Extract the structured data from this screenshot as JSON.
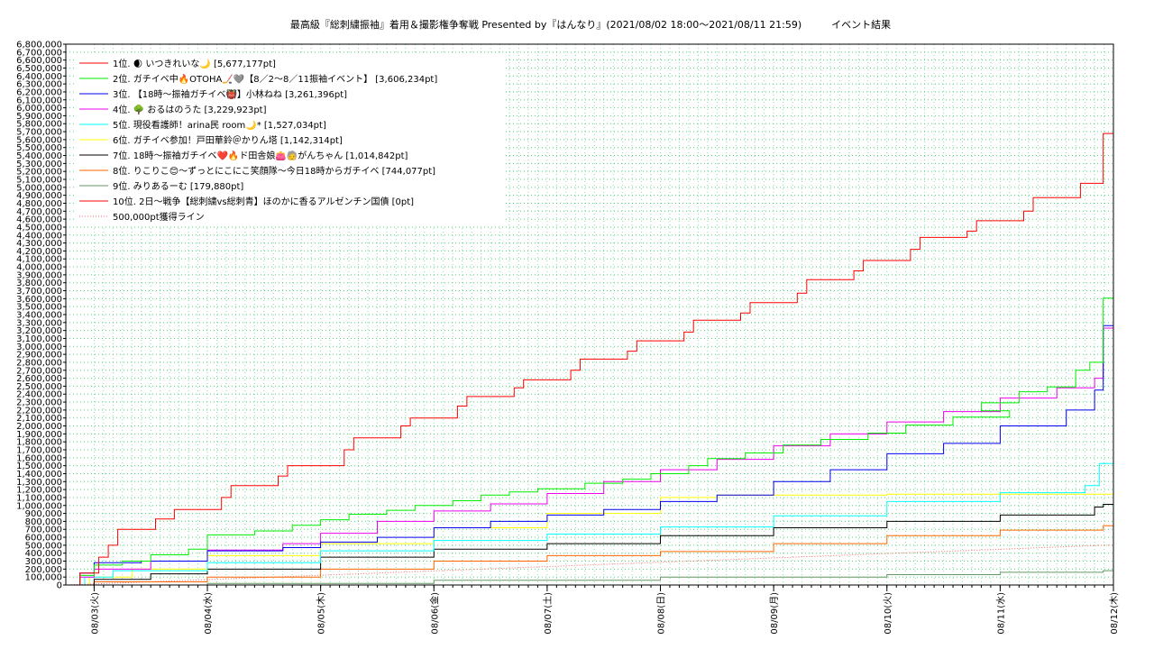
{
  "title": "最高級『総刺繍振袖』着用＆撮影権争奪戦 Presented by『はんなり』(2021/08/02 18:00〜2021/08/11 21:59)　　　イベント結果",
  "chart_data": {
    "type": "line",
    "title": "最高級『総刺繍振袖』着用＆撮影権争奪戦 Presented by『はんなり』(2021/08/02 18:00〜2021/08/11 21:59)　　　イベント結果",
    "xlabel": "",
    "ylabel": "",
    "x_range": [
      "2021-08-02T18:00",
      "2021-08-12T00:00"
    ],
    "ylim": [
      0,
      6800000
    ],
    "y_tick_step": 100000,
    "grid": true,
    "legend_position": "top-left",
    "x_ticks": [
      "08/03(火)",
      "08/04(水)",
      "08/05(木)",
      "08/06(金)",
      "08/07(土)",
      "08/08(日)",
      "08/09(月)",
      "08/10(火)",
      "08/11(水)",
      "08/12(木)"
    ],
    "x_tick_dates": [
      "2021-08-03T00:00",
      "2021-08-04T00:00",
      "2021-08-05T00:00",
      "2021-08-06T00:00",
      "2021-08-07T00:00",
      "2021-08-08T00:00",
      "2021-08-09T00:00",
      "2021-08-10T00:00",
      "2021-08-11T00:00",
      "2021-08-12T00:00"
    ],
    "series": [
      {
        "name": "1位. 🌒 いつきれいな🌙 [5,677,177pt]",
        "color": "#ff0000",
        "dash": false,
        "step": true,
        "points": [
          [
            "2021-08-02T18:00",
            0
          ],
          [
            "2021-08-02T21:00",
            150000
          ],
          [
            "2021-08-03T01:00",
            350000
          ],
          [
            "2021-08-03T03:00",
            500000
          ],
          [
            "2021-08-03T05:00",
            700000
          ],
          [
            "2021-08-03T13:00",
            830000
          ],
          [
            "2021-08-03T17:00",
            950000
          ],
          [
            "2021-08-04T03:00",
            1100000
          ],
          [
            "2021-08-04T05:00",
            1250000
          ],
          [
            "2021-08-04T15:00",
            1370000
          ],
          [
            "2021-08-04T17:00",
            1500000
          ],
          [
            "2021-08-05T05:00",
            1700000
          ],
          [
            "2021-08-05T07:00",
            1850000
          ],
          [
            "2021-08-05T17:00",
            2000000
          ],
          [
            "2021-08-05T19:00",
            2100000
          ],
          [
            "2021-08-06T05:00",
            2250000
          ],
          [
            "2021-08-06T07:00",
            2370000
          ],
          [
            "2021-08-06T17:00",
            2480000
          ],
          [
            "2021-08-06T19:00",
            2580000
          ],
          [
            "2021-08-07T05:00",
            2700000
          ],
          [
            "2021-08-07T07:00",
            2840000
          ],
          [
            "2021-08-07T17:00",
            2940000
          ],
          [
            "2021-08-07T19:00",
            3070000
          ],
          [
            "2021-08-08T05:00",
            3180000
          ],
          [
            "2021-08-08T07:00",
            3330000
          ],
          [
            "2021-08-08T17:00",
            3420000
          ],
          [
            "2021-08-08T19:00",
            3550000
          ],
          [
            "2021-08-09T05:00",
            3670000
          ],
          [
            "2021-08-09T07:00",
            3840000
          ],
          [
            "2021-08-09T17:00",
            3950000
          ],
          [
            "2021-08-09T19:00",
            4080000
          ],
          [
            "2021-08-10T05:00",
            4220000
          ],
          [
            "2021-08-10T07:00",
            4370000
          ],
          [
            "2021-08-10T17:00",
            4450000
          ],
          [
            "2021-08-10T19:00",
            4580000
          ],
          [
            "2021-08-11T05:00",
            4700000
          ],
          [
            "2021-08-11T07:00",
            4870000
          ],
          [
            "2021-08-11T17:00",
            5050000
          ],
          [
            "2021-08-11T21:50",
            5677177
          ],
          [
            "2021-08-12T00:00",
            5677177
          ]
        ]
      },
      {
        "name": "2位. ガチイベ中🔥OTOHA🏒🩶【8／2〜8／11振袖イベント】 [3,606,234pt]",
        "color": "#00ee00",
        "dash": false,
        "step": true,
        "points": [
          [
            "2021-08-02T18:00",
            0
          ],
          [
            "2021-08-02T21:00",
            120000
          ],
          [
            "2021-08-03T00:00",
            250000
          ],
          [
            "2021-08-03T06:00",
            300000
          ],
          [
            "2021-08-03T12:00",
            380000
          ],
          [
            "2021-08-03T20:00",
            450000
          ],
          [
            "2021-08-04T00:00",
            630000
          ],
          [
            "2021-08-04T10:00",
            680000
          ],
          [
            "2021-08-04T18:00",
            750000
          ],
          [
            "2021-08-05T00:00",
            820000
          ],
          [
            "2021-08-05T06:00",
            890000
          ],
          [
            "2021-08-05T14:00",
            940000
          ],
          [
            "2021-08-05T20:00",
            1000000
          ],
          [
            "2021-08-06T04:00",
            1060000
          ],
          [
            "2021-08-06T10:00",
            1130000
          ],
          [
            "2021-08-06T16:00",
            1170000
          ],
          [
            "2021-08-06T22:00",
            1210000
          ],
          [
            "2021-08-07T08:00",
            1280000
          ],
          [
            "2021-08-07T16:00",
            1330000
          ],
          [
            "2021-08-07T22:00",
            1400000
          ],
          [
            "2021-08-08T06:00",
            1500000
          ],
          [
            "2021-08-08T10:00",
            1590000
          ],
          [
            "2021-08-08T18:00",
            1660000
          ],
          [
            "2021-08-09T02:00",
            1760000
          ],
          [
            "2021-08-09T10:00",
            1830000
          ],
          [
            "2021-08-09T20:00",
            1910000
          ],
          [
            "2021-08-10T04:00",
            2010000
          ],
          [
            "2021-08-10T14:00",
            2110000
          ],
          [
            "2021-08-11T02:00",
            2190000
          ],
          [
            "2021-08-10T20:00",
            2290000
          ],
          [
            "2021-08-11T04:00",
            2430000
          ],
          [
            "2021-08-11T10:00",
            2490000
          ],
          [
            "2021-08-11T16:00",
            2700000
          ],
          [
            "2021-08-11T19:00",
            2800000
          ],
          [
            "2021-08-11T21:50",
            3606234
          ],
          [
            "2021-08-12T00:00",
            3606234
          ]
        ]
      },
      {
        "name": "3位. 【18時〜振袖ガチイベ👹】小林ねね [3,261,396pt]",
        "color": "#0000ee",
        "dash": false,
        "step": true,
        "points": [
          [
            "2021-08-02T18:00",
            0
          ],
          [
            "2021-08-02T21:00",
            150000
          ],
          [
            "2021-08-03T00:00",
            280000
          ],
          [
            "2021-08-03T10:00",
            300000
          ],
          [
            "2021-08-04T00:00",
            430000
          ],
          [
            "2021-08-04T16:00",
            470000
          ],
          [
            "2021-08-05T00:00",
            540000
          ],
          [
            "2021-08-05T12:00",
            600000
          ],
          [
            "2021-08-06T00:00",
            720000
          ],
          [
            "2021-08-06T12:00",
            800000
          ],
          [
            "2021-08-07T00:00",
            880000
          ],
          [
            "2021-08-07T12:00",
            950000
          ],
          [
            "2021-08-08T00:00",
            1050000
          ],
          [
            "2021-08-08T12:00",
            1130000
          ],
          [
            "2021-08-09T00:00",
            1300000
          ],
          [
            "2021-08-09T12:00",
            1450000
          ],
          [
            "2021-08-10T00:00",
            1650000
          ],
          [
            "2021-08-10T12:00",
            1780000
          ],
          [
            "2021-08-11T00:00",
            2000000
          ],
          [
            "2021-08-11T14:00",
            2200000
          ],
          [
            "2021-08-11T20:00",
            2450000
          ],
          [
            "2021-08-11T21:50",
            3261396
          ],
          [
            "2021-08-12T00:00",
            3261396
          ]
        ]
      },
      {
        "name": "4位. 🌳 おるはのうた [3,229,923pt]",
        "color": "#ee00ee",
        "dash": false,
        "step": true,
        "points": [
          [
            "2021-08-02T18:00",
            0
          ],
          [
            "2021-08-02T21:00",
            100000
          ],
          [
            "2021-08-03T00:00",
            200000
          ],
          [
            "2021-08-03T12:00",
            300000
          ],
          [
            "2021-08-04T00:00",
            440000
          ],
          [
            "2021-08-04T16:00",
            520000
          ],
          [
            "2021-08-05T00:00",
            650000
          ],
          [
            "2021-08-05T12:00",
            800000
          ],
          [
            "2021-08-06T00:00",
            930000
          ],
          [
            "2021-08-06T12:00",
            1020000
          ],
          [
            "2021-08-07T00:00",
            1150000
          ],
          [
            "2021-08-07T12:00",
            1300000
          ],
          [
            "2021-08-08T00:00",
            1450000
          ],
          [
            "2021-08-08T12:00",
            1580000
          ],
          [
            "2021-08-09T00:00",
            1750000
          ],
          [
            "2021-08-09T12:00",
            1900000
          ],
          [
            "2021-08-10T00:00",
            2050000
          ],
          [
            "2021-08-10T12:00",
            2180000
          ],
          [
            "2021-08-11T00:00",
            2350000
          ],
          [
            "2021-08-11T12:00",
            2480000
          ],
          [
            "2021-08-11T20:00",
            2600000
          ],
          [
            "2021-08-11T21:50",
            3229923
          ],
          [
            "2021-08-12T00:00",
            3229923
          ]
        ]
      },
      {
        "name": "5位. 現役看護師！arina民 room🌙* [1,527,034pt]",
        "color": "#00ffff",
        "dash": false,
        "step": true,
        "points": [
          [
            "2021-08-02T18:00",
            0
          ],
          [
            "2021-08-02T22:00",
            100000
          ],
          [
            "2021-08-03T04:00",
            180000
          ],
          [
            "2021-08-04T00:00",
            280000
          ],
          [
            "2021-08-05T00:00",
            430000
          ],
          [
            "2021-08-06T00:00",
            560000
          ],
          [
            "2021-08-07T00:00",
            640000
          ],
          [
            "2021-08-08T00:00",
            730000
          ],
          [
            "2021-08-09T00:00",
            870000
          ],
          [
            "2021-08-10T00:00",
            1050000
          ],
          [
            "2021-08-11T00:00",
            1160000
          ],
          [
            "2021-08-11T18:00",
            1250000
          ],
          [
            "2021-08-11T21:00",
            1527034
          ],
          [
            "2021-08-12T00:00",
            1527034
          ]
        ]
      },
      {
        "name": "6位. ガチイベ参加！戸田華鈴＠かりん塔 [1,142,314pt]",
        "color": "#ffff00",
        "dash": false,
        "step": true,
        "points": [
          [
            "2021-08-02T18:00",
            0
          ],
          [
            "2021-08-02T23:00",
            100000
          ],
          [
            "2021-08-03T08:00",
            200000
          ],
          [
            "2021-08-04T00:00",
            370000
          ],
          [
            "2021-08-05T00:00",
            520000
          ],
          [
            "2021-08-06T00:00",
            720000
          ],
          [
            "2021-08-07T00:00",
            900000
          ],
          [
            "2021-08-08T00:00",
            1100000
          ],
          [
            "2021-08-08T12:00",
            1130000
          ],
          [
            "2021-08-10T00:00",
            1142314
          ],
          [
            "2021-08-12T00:00",
            1142314
          ]
        ]
      },
      {
        "name": "7位. 18時〜振袖ガチイベ❤️🔥ド田舎娘👛🧓がんちゃん [1,014,842pt]",
        "color": "#000000",
        "dash": false,
        "step": true,
        "points": [
          [
            "2021-08-02T18:00",
            0
          ],
          [
            "2021-08-03T00:00",
            70000
          ],
          [
            "2021-08-03T12:00",
            140000
          ],
          [
            "2021-08-04T00:00",
            200000
          ],
          [
            "2021-08-05T00:00",
            350000
          ],
          [
            "2021-08-06T00:00",
            450000
          ],
          [
            "2021-08-07T00:00",
            520000
          ],
          [
            "2021-08-08T00:00",
            620000
          ],
          [
            "2021-08-09T00:00",
            720000
          ],
          [
            "2021-08-10T00:00",
            800000
          ],
          [
            "2021-08-11T00:00",
            880000
          ],
          [
            "2021-08-11T20:00",
            980000
          ],
          [
            "2021-08-11T21:50",
            1014842
          ],
          [
            "2021-08-12T00:00",
            1014842
          ]
        ]
      },
      {
        "name": "8位. りこりこ😊〜ずっとにこにこ笑顔隊〜今日18時からガチイベ [744,077pt]",
        "color": "#ff6600",
        "dash": false,
        "step": true,
        "points": [
          [
            "2021-08-02T18:00",
            0
          ],
          [
            "2021-08-03T00:00",
            40000
          ],
          [
            "2021-08-04T00:00",
            100000
          ],
          [
            "2021-08-05T00:00",
            200000
          ],
          [
            "2021-08-06T00:00",
            300000
          ],
          [
            "2021-08-07T00:00",
            370000
          ],
          [
            "2021-08-08T00:00",
            420000
          ],
          [
            "2021-08-09T00:00",
            520000
          ],
          [
            "2021-08-10T00:00",
            620000
          ],
          [
            "2021-08-11T00:00",
            690000
          ],
          [
            "2021-08-11T21:50",
            744077
          ],
          [
            "2021-08-12T00:00",
            744077
          ]
        ]
      },
      {
        "name": "9位. みりあるーむ [179,880pt]",
        "color": "#669966",
        "dash": false,
        "step": true,
        "points": [
          [
            "2021-08-02T18:00",
            0
          ],
          [
            "2021-08-04T00:00",
            20000
          ],
          [
            "2021-08-06T00:00",
            60000
          ],
          [
            "2021-08-08T00:00",
            100000
          ],
          [
            "2021-08-10T00:00",
            130000
          ],
          [
            "2021-08-11T00:00",
            160000
          ],
          [
            "2021-08-11T21:50",
            179880
          ],
          [
            "2021-08-12T00:00",
            179880
          ]
        ]
      },
      {
        "name": "10位. 2日〜戦争【総刺繍vs総刺青】ほのかに香るアルゼンチン国債 [0pt]",
        "color": "#ff0000",
        "dash": false,
        "step": true,
        "points": [
          [
            "2021-08-02T18:00",
            0
          ],
          [
            "2021-08-12T00:00",
            0
          ]
        ]
      },
      {
        "name": "500,000pt獲得ライン",
        "color": "#ff6666",
        "dash": true,
        "step": false,
        "points": [
          [
            "2021-08-02T18:00",
            0
          ],
          [
            "2021-08-11T21:59",
            500000
          ],
          [
            "2021-08-12T00:00",
            500000
          ]
        ]
      }
    ]
  }
}
